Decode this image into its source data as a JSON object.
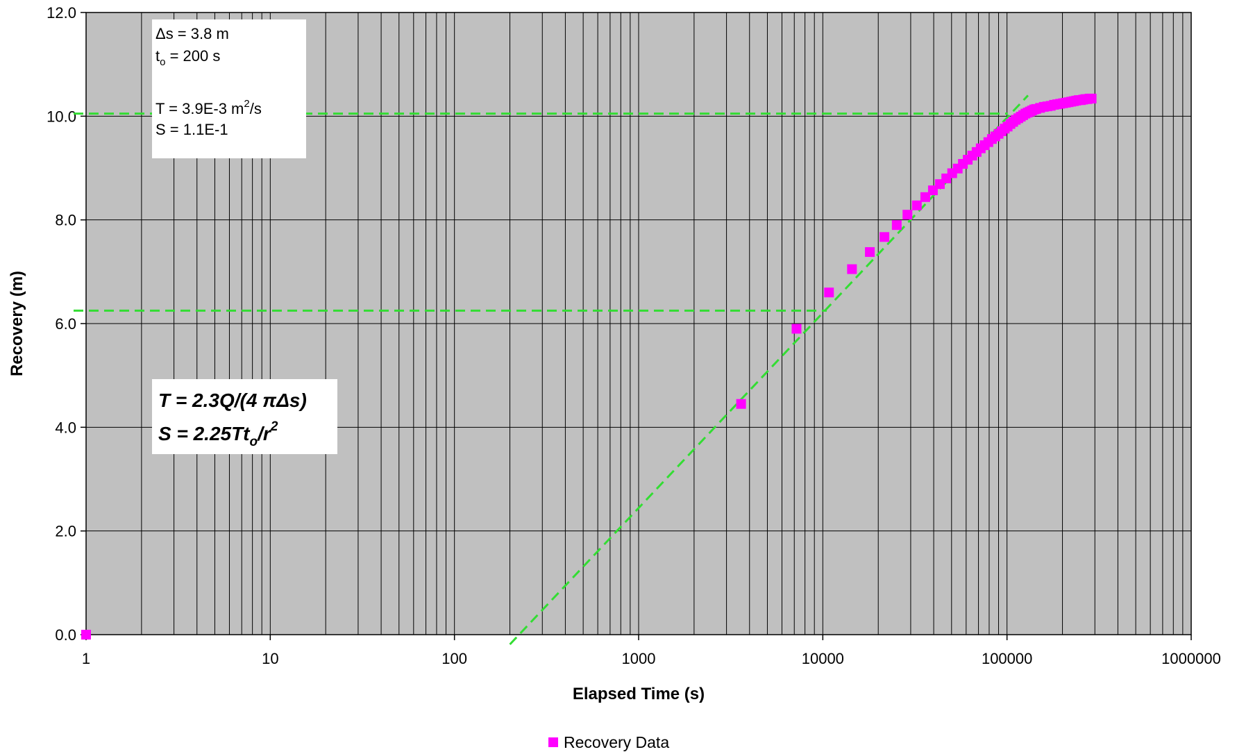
{
  "chart_data": {
    "type": "scatter",
    "title": "",
    "xlabel": "Elapsed Time (s)",
    "ylabel": "Recovery (m)",
    "xscale": "log",
    "xlim": [
      1,
      1000000
    ],
    "ylim": [
      0,
      12
    ],
    "x_tick_labels": [
      "1",
      "10",
      "100",
      "1000",
      "10000",
      "100000",
      "1000000"
    ],
    "y_tick_labels": [
      "0.0",
      "2.0",
      "4.0",
      "6.0",
      "8.0",
      "10.0",
      "12.0"
    ],
    "grid": true,
    "legend_position": "bottom",
    "colors": {
      "plot_background": "#c0c0c0",
      "grid": "#000000",
      "series": "#ff00ff",
      "fit_lines": "#33dd33"
    },
    "series": [
      {
        "name": "Recovery Data",
        "x": [
          1,
          3600,
          7200,
          10800,
          14400,
          18000,
          21600,
          25200,
          28800,
          32400,
          36000,
          39600,
          43200,
          46800,
          50400,
          54000,
          57600,
          61200,
          64800,
          68400,
          72000,
          75600,
          79200,
          82800,
          86400,
          90000,
          93600,
          97200,
          100800,
          104400,
          108000,
          111600,
          115200,
          118800,
          122400,
          126000,
          129600,
          133200,
          136800,
          140400,
          144000,
          151200,
          158400,
          165600,
          172800,
          180000,
          187200,
          194400,
          201600,
          208800,
          216000,
          223200,
          230400,
          237600,
          244800,
          252000,
          259200,
          266400,
          273600,
          280800,
          288000
        ],
        "y": [
          0.0,
          4.45,
          5.9,
          6.6,
          7.05,
          7.38,
          7.67,
          7.9,
          8.1,
          8.28,
          8.44,
          8.57,
          8.69,
          8.8,
          8.9,
          8.99,
          9.08,
          9.16,
          9.24,
          9.31,
          9.38,
          9.44,
          9.5,
          9.56,
          9.61,
          9.66,
          9.71,
          9.76,
          9.8,
          9.85,
          9.89,
          9.93,
          9.96,
          9.99,
          10.02,
          10.05,
          10.07,
          10.09,
          10.11,
          10.13,
          10.14,
          10.16,
          10.18,
          10.19,
          10.2,
          10.22,
          10.23,
          10.24,
          10.25,
          10.26,
          10.27,
          10.28,
          10.29,
          10.3,
          10.31,
          10.31,
          10.32,
          10.33,
          10.33,
          10.34,
          10.34
        ]
      }
    ],
    "annotation_box": {
      "delta_s_line": "Δs = 3.8 m",
      "to_prefix": "t",
      "to_sub": "o",
      "to_suffix": " = 200 s",
      "T_prefix": "T = 3.9E-3 m",
      "T_sup": "2",
      "T_suffix": "/s",
      "S_line": "S = 1.1E-1"
    },
    "formula_box": {
      "line1": "T = 2.3Q/(4 πΔs)",
      "line2_prefix": "S = 2.25Tt",
      "line2_sub": "o",
      "line2_mid": "/r",
      "line2_sup": "2"
    },
    "fit_line": {
      "x_start": 200,
      "y_start": 0.0,
      "x_end": 130000,
      "y_end": 10.4
    },
    "horizontal_lines": [
      {
        "y": 6.25,
        "x_end": 10500
      },
      {
        "y": 10.05,
        "x_end": 101000
      }
    ]
  }
}
